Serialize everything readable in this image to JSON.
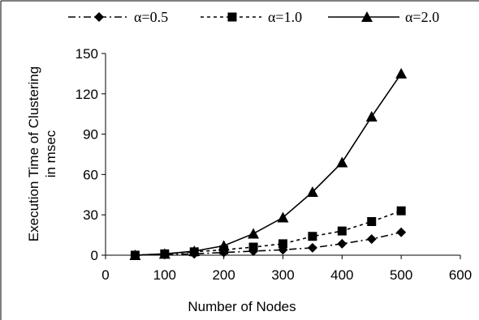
{
  "chart_data": {
    "type": "line",
    "title": "",
    "xlabel": "Number of Nodes",
    "ylabel_lines": [
      "Execution Time of Clustering",
      "in msec"
    ],
    "xlim": [
      0,
      600
    ],
    "ylim": [
      0,
      150
    ],
    "x_ticks": [
      0,
      100,
      200,
      300,
      400,
      500,
      600
    ],
    "y_ticks": [
      0,
      30,
      60,
      90,
      120,
      150
    ],
    "x_tick_labels": [
      "0",
      "100",
      "200",
      "300",
      "400",
      "500",
      "600"
    ],
    "y_tick_labels": [
      "0",
      "30",
      "60",
      "90",
      "120",
      "150"
    ],
    "grid": false,
    "legend_position": "top",
    "x": [
      50,
      100,
      150,
      200,
      250,
      300,
      350,
      400,
      450,
      500
    ],
    "series": [
      {
        "name": "α=0.5",
        "marker": "diamond",
        "line_style": "dash-dot",
        "values": [
          0,
          0.5,
          1,
          2,
          3,
          4,
          5.5,
          8.5,
          12,
          17
        ]
      },
      {
        "name": "α=1.0",
        "marker": "square",
        "line_style": "dashed",
        "values": [
          0,
          1,
          2.5,
          4,
          6,
          8.5,
          14,
          18,
          25,
          33
        ]
      },
      {
        "name": "α=2.0",
        "marker": "triangle",
        "line_style": "solid",
        "values": [
          0,
          1,
          3,
          7,
          16,
          28,
          47,
          69,
          103,
          135
        ]
      }
    ],
    "colors": {
      "ink": "#000000",
      "background": "#ffffff"
    }
  }
}
